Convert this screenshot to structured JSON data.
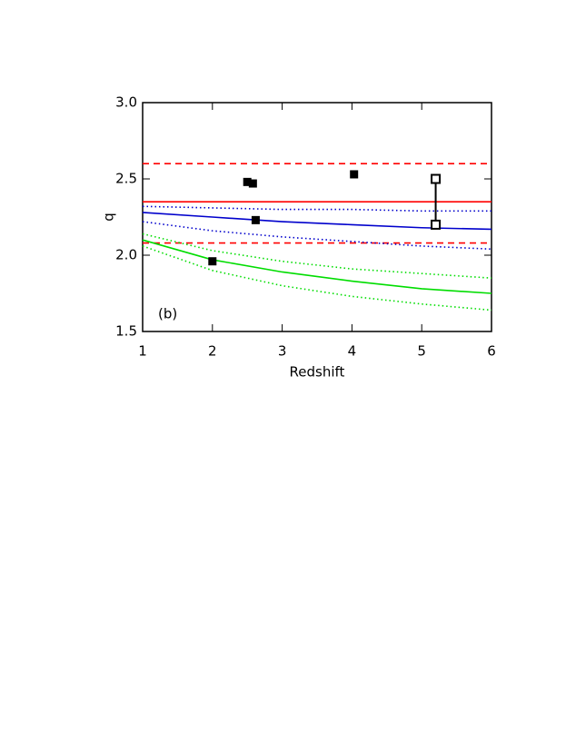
{
  "chart_data": {
    "type": "line",
    "xlabel": "Redshift",
    "ylabel": "q",
    "annotation": "(b)",
    "xlim": [
      1,
      6
    ],
    "ylim": [
      1.5,
      3.0
    ],
    "xticks": [
      1,
      2,
      3,
      4,
      5,
      6
    ],
    "yticks": [
      {
        "value": 1.5,
        "label": "1.5"
      },
      {
        "value": 2,
        "label": "2.0"
      },
      {
        "value": 2.5,
        "label": "2.5"
      },
      {
        "value": 3,
        "label": "3.0"
      }
    ],
    "x": [
      1,
      2,
      3,
      4,
      5,
      6
    ],
    "series": [
      {
        "color": "#ff0000",
        "style": "dashed",
        "values": [
          2.6,
          2.6,
          2.6,
          2.6,
          2.6,
          2.6
        ]
      },
      {
        "color": "#ff0000",
        "style": "solid",
        "values": [
          2.35,
          2.35,
          2.35,
          2.35,
          2.35,
          2.35
        ]
      },
      {
        "color": "#ff0000",
        "style": "dashed",
        "values": [
          2.08,
          2.08,
          2.08,
          2.08,
          2.08,
          2.08
        ]
      },
      {
        "color": "#0000cc",
        "style": "dotted",
        "values": [
          2.32,
          2.31,
          2.3,
          2.3,
          2.29,
          2.29
        ]
      },
      {
        "color": "#0000cc",
        "style": "solid",
        "values": [
          2.28,
          2.25,
          2.22,
          2.2,
          2.18,
          2.17
        ]
      },
      {
        "color": "#0000cc",
        "style": "dotted",
        "values": [
          2.22,
          2.16,
          2.12,
          2.09,
          2.06,
          2.04
        ]
      },
      {
        "color": "#00dd00",
        "style": "dotted",
        "values": [
          2.14,
          2.03,
          1.96,
          1.91,
          1.88,
          1.85
        ]
      },
      {
        "color": "#00dd00",
        "style": "solid",
        "values": [
          2.1,
          1.97,
          1.89,
          1.83,
          1.78,
          1.75
        ]
      },
      {
        "color": "#00dd00",
        "style": "dotted",
        "values": [
          2.06,
          1.9,
          1.8,
          1.73,
          1.68,
          1.64
        ]
      }
    ],
    "points": {
      "x": [
        2.0,
        2.5,
        2.58,
        2.62,
        4.03
      ],
      "y": [
        1.96,
        2.48,
        2.47,
        2.23,
        2.53
      ]
    },
    "open_points": {
      "x": [
        5.2,
        5.2
      ],
      "y": [
        2.5,
        2.2
      ]
    }
  }
}
